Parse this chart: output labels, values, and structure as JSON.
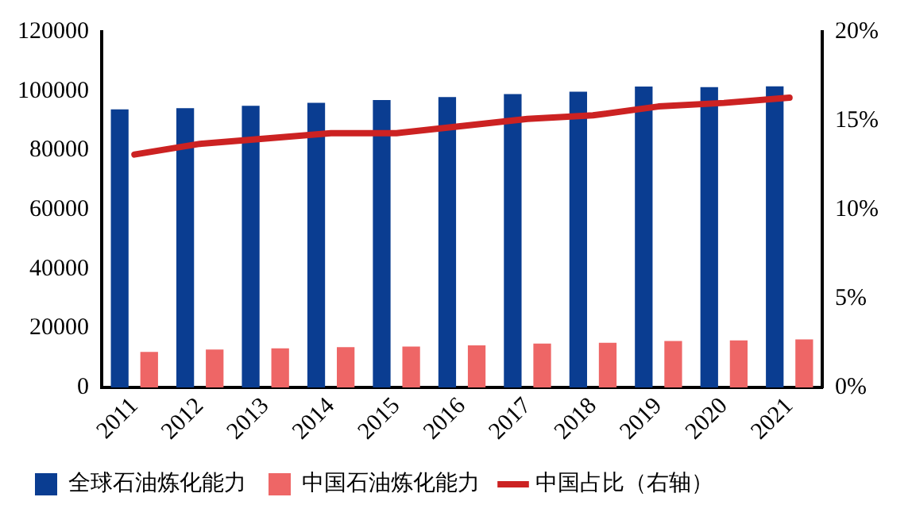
{
  "chart_data": {
    "type": "bar",
    "categories": [
      "2011",
      "2012",
      "2013",
      "2014",
      "2015",
      "2016",
      "2017",
      "2018",
      "2019",
      "2020",
      "2021"
    ],
    "series": [
      {
        "name": "全球石油炼化能力",
        "color": "#0a3d91",
        "values": [
          93800,
          94200,
          95000,
          96000,
          97000,
          98000,
          99000,
          99800,
          101500,
          101300,
          101600
        ]
      },
      {
        "name": "中国石油炼化能力",
        "color": "#ee6666",
        "values": [
          12000,
          12800,
          13200,
          13600,
          13800,
          14200,
          14800,
          15100,
          15700,
          15900,
          16200
        ]
      },
      {
        "name": "中国占比（右轴）",
        "type": "line",
        "axis": "y2",
        "color": "#cc2222",
        "marker": "none",
        "values": [
          13.1,
          13.7,
          14.0,
          14.3,
          14.3,
          14.7,
          15.1,
          15.3,
          15.8,
          16.0,
          16.3
        ]
      }
    ],
    "ylim": [
      0,
      120000
    ],
    "yticks": [
      0,
      20000,
      40000,
      60000,
      80000,
      100000,
      120000
    ],
    "y2lim": [
      0,
      20
    ],
    "y2ticks": [
      {
        "value": 0,
        "label": "0%"
      },
      {
        "value": 5,
        "label": "5%"
      },
      {
        "value": 10,
        "label": "10%"
      },
      {
        "value": 15,
        "label": "15%"
      },
      {
        "value": 20,
        "label": "20%"
      }
    ],
    "grid": false,
    "legend": "bottom"
  }
}
